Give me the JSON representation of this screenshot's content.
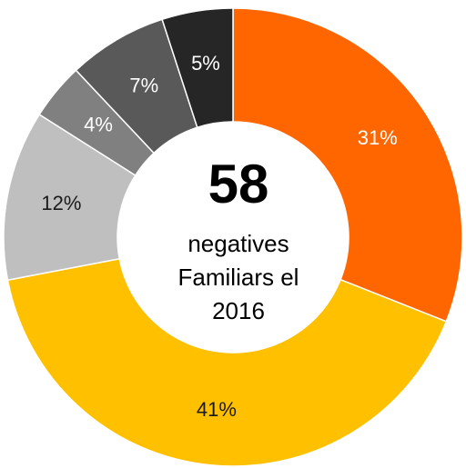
{
  "chart_data": {
    "type": "donut",
    "categories": [
      null,
      null,
      null,
      null,
      null,
      null
    ],
    "values": [
      31,
      41,
      12,
      4,
      7,
      5
    ],
    "value_labels": [
      "31%",
      "41%",
      "12%",
      "4%",
      "7%",
      "5%"
    ],
    "colors": [
      "#ff6600",
      "#ffc000",
      "#bfbfbf",
      "#808080",
      "#595959",
      "#262626"
    ],
    "label_colors": [
      "#ffffff",
      "#1a1a1a",
      "#1a1a1a",
      "#ffffff",
      "#ffffff",
      "#ffffff"
    ],
    "center_value": 58,
    "center_lines": [
      "negatives",
      "Familiars el",
      "2016"
    ]
  }
}
